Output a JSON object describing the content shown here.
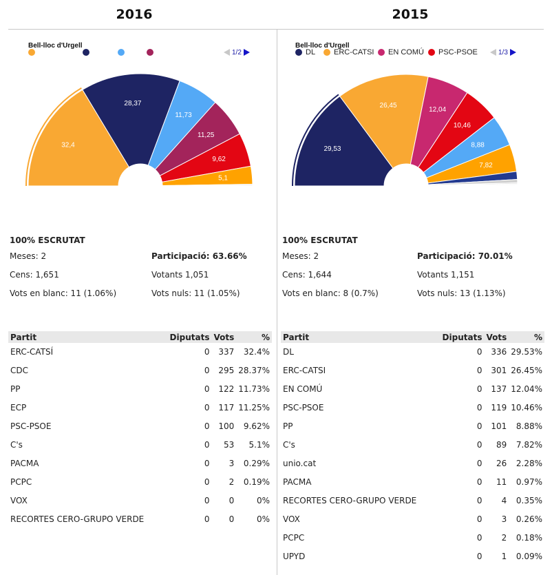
{
  "panels": [
    {
      "year": "2016",
      "legend": {
        "title": "Bell-lloc d'Urgell",
        "items": [
          {
            "label": "",
            "color": "#f9a833"
          },
          {
            "label": "",
            "color": "#1e2463"
          },
          {
            "label": "",
            "color": "#54a9f6"
          },
          {
            "label": "",
            "color": "#a3245b"
          }
        ],
        "pager": "1/2"
      },
      "stats": {
        "escrutat": "100% ESCRUTAT",
        "meses": "Meses: 2",
        "participacio": "Participació: 63.66%",
        "cens": "Cens: 1,651",
        "votants": "Votants 1,051",
        "vots_blanc": "Vots en blanc: 11 (1.06%)",
        "vots_nuls": "Vots nuls: 11 (1.05%)"
      },
      "table": {
        "headers": [
          "Partit",
          "Diputats",
          "Vots",
          "%"
        ],
        "rows": [
          [
            "ERC-CATSÍ",
            "0",
            "337",
            "32.4%"
          ],
          [
            "CDC",
            "0",
            "295",
            "28.37%"
          ],
          [
            "PP",
            "0",
            "122",
            "11.73%"
          ],
          [
            "ECP",
            "0",
            "117",
            "11.25%"
          ],
          [
            "PSC-PSOE",
            "0",
            "100",
            "9.62%"
          ],
          [
            "C's",
            "0",
            "53",
            "5.1%"
          ],
          [
            "PACMA",
            "0",
            "3",
            "0.29%"
          ],
          [
            "PCPC",
            "0",
            "2",
            "0.19%"
          ],
          [
            "VOX",
            "0",
            "0",
            "0%"
          ],
          [
            "RECORTES CERO-GRUPO VERDE",
            "0",
            "0",
            "0%"
          ]
        ]
      }
    },
    {
      "year": "2015",
      "legend": {
        "title": "Bell-lloc d'Urgell",
        "items": [
          {
            "label": "DL",
            "color": "#1e2463"
          },
          {
            "label": "ERC-CATSI",
            "color": "#f9a833"
          },
          {
            "label": "EN COMÚ",
            "color": "#c8286f"
          },
          {
            "label": "PSC-PSOE",
            "color": "#e30613"
          }
        ],
        "pager": "1/3"
      },
      "stats": {
        "escrutat": "100% ESCRUTAT",
        "meses": "Meses: 2",
        "participacio": "Participació: 70.01%",
        "cens": "Cens: 1,644",
        "votants": "Votants 1,151",
        "vots_blanc": "Vots en blanc: 8 (0.7%)",
        "vots_nuls": "Vots nuls: 13 (1.13%)"
      },
      "table": {
        "headers": [
          "Partit",
          "Diputats",
          "Vots",
          "%"
        ],
        "rows": [
          [
            "DL",
            "0",
            "336",
            "29.53%"
          ],
          [
            "ERC-CATSI",
            "0",
            "301",
            "26.45%"
          ],
          [
            "EN COMÚ",
            "0",
            "137",
            "12.04%"
          ],
          [
            "PSC-PSOE",
            "0",
            "119",
            "10.46%"
          ],
          [
            "PP",
            "0",
            "101",
            "8.88%"
          ],
          [
            "C's",
            "0",
            "89",
            "7.82%"
          ],
          [
            "unio.cat",
            "0",
            "26",
            "2.28%"
          ],
          [
            "PACMA",
            "0",
            "11",
            "0.97%"
          ],
          [
            "RECORTES CERO-GRUPO VERDE",
            "0",
            "4",
            "0.35%"
          ],
          [
            "VOX",
            "0",
            "3",
            "0.26%"
          ],
          [
            "PCPC",
            "0",
            "2",
            "0.18%"
          ],
          [
            "UPYD",
            "0",
            "1",
            "0.09%"
          ]
        ]
      }
    }
  ],
  "chart_data": [
    {
      "type": "pie",
      "subtype": "semicircle-donut",
      "title": "2016",
      "subtitle": "Bell-lloc d'Urgell",
      "categories": [
        "ERC-CATSÍ",
        "CDC",
        "PP",
        "ECP",
        "PSC-PSOE",
        "C's",
        "PACMA",
        "PCPC",
        "VOX",
        "RECORTES CERO-GRUPO VERDE"
      ],
      "values": [
        32.4,
        28.37,
        11.73,
        11.25,
        9.62,
        5.1,
        0.29,
        0.19,
        0,
        0
      ],
      "labels": [
        "32,4",
        "28,37",
        "11,73",
        "11,25",
        "9,62",
        "5,1",
        "",
        "",
        "",
        ""
      ],
      "colors": [
        "#f9a833",
        "#1e2463",
        "#54a9f6",
        "#a3245b",
        "#e30613",
        "#ffa200",
        "#c8c8c8",
        "#d8d8d8",
        "#e0e0e0",
        "#e8e8e8"
      ],
      "highlighted": "ERC-CATSÍ",
      "legend_position": "top-left"
    },
    {
      "type": "pie",
      "subtype": "semicircle-donut",
      "title": "2015",
      "subtitle": "Bell-lloc d'Urgell",
      "categories": [
        "DL",
        "ERC-CATSI",
        "EN COMÚ",
        "PSC-PSOE",
        "PP",
        "C's",
        "unio.cat",
        "PACMA",
        "RECORTES CERO-GRUPO VERDE",
        "VOX",
        "PCPC",
        "UPYD"
      ],
      "values": [
        29.53,
        26.45,
        12.04,
        10.46,
        8.88,
        7.82,
        2.28,
        0.97,
        0.35,
        0.26,
        0.18,
        0.09
      ],
      "labels": [
        "29,53",
        "26,45",
        "12,04",
        "10,46",
        "8,88",
        "7,82",
        "",
        "",
        "",
        "",
        "",
        ""
      ],
      "colors": [
        "#1e2463",
        "#f9a833",
        "#c8286f",
        "#e30613",
        "#54a9f6",
        "#ffa200",
        "#233a8f",
        "#d0d0d0",
        "#dadada",
        "#e0e0e0",
        "#e6e6e6",
        "#ececec"
      ],
      "highlighted": "DL",
      "legend_position": "top-left"
    }
  ]
}
